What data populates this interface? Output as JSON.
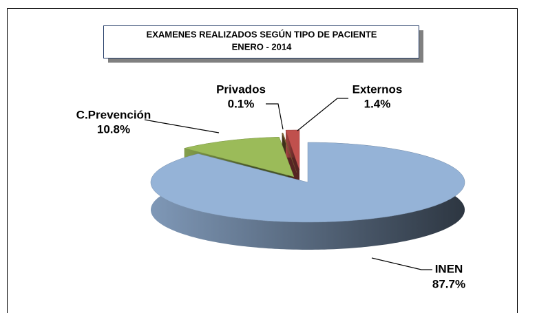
{
  "chart_data": {
    "type": "pie",
    "title": "EXAMENES REALIZADOS SEGÚN TIPO DE PACIENTE",
    "subtitle": "ENERO  -  2014",
    "categories": [
      "INEN",
      "C.Prevención",
      "Privados",
      "Externos"
    ],
    "values": [
      87.7,
      10.8,
      0.1,
      1.4
    ],
    "value_labels": [
      "87.7%",
      "10.8%",
      "0.1%",
      "1.4%"
    ],
    "colors": [
      "#95b3d7",
      "#9bbb59",
      "#8a6a3a",
      "#c0504d"
    ]
  }
}
